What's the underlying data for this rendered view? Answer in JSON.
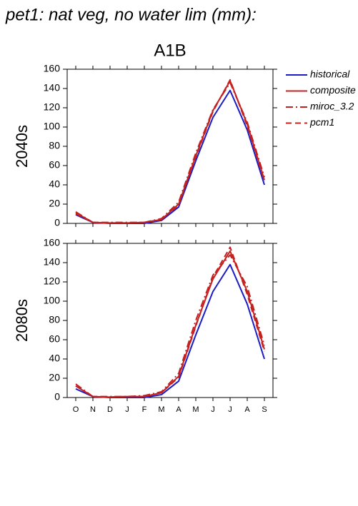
{
  "title": "pet1: nat veg, no water lim (mm):",
  "chart_data": {
    "type": "line",
    "subtitle": "A1B",
    "categories": [
      "O",
      "N",
      "D",
      "J",
      "F",
      "M",
      "A",
      "M",
      "J",
      "J",
      "A",
      "S"
    ],
    "ylim": [
      0,
      160
    ],
    "yticks": [
      0,
      20,
      40,
      60,
      80,
      100,
      120,
      140,
      160
    ],
    "grid": false,
    "legend": "outside-right",
    "series": [
      {
        "name": "historical",
        "color": "#1c1cc4",
        "dash": "solid"
      },
      {
        "name": "composite",
        "color": "#c42020",
        "dash": "solid"
      },
      {
        "name": "miroc_3.2",
        "color": "#c42020",
        "dash": "dash-dot"
      },
      {
        "name": "pcm1",
        "color": "#c42020",
        "dash": "dashed"
      }
    ],
    "panels": [
      {
        "ylabel": "2040s",
        "series": [
          {
            "values": [
              9,
              1,
              0,
              0,
              0,
              3,
              17,
              65,
              110,
              138,
              97,
              40
            ]
          },
          {
            "values": [
              11,
              1,
              0.5,
              0.5,
              1,
              4,
              20,
              70,
              117,
              148,
              103,
              45
            ]
          },
          {
            "values": [
              12,
              1,
              1,
              1,
              1,
              5,
              22,
              73,
              118,
              146,
              105,
              48
            ]
          },
          {
            "values": [
              10,
              1,
              0.5,
              0.5,
              1,
              4,
              19,
              69,
              116,
              149,
              101,
              44
            ]
          }
        ]
      },
      {
        "ylabel": "2080s",
        "series": [
          {
            "values": [
              9,
              1,
              0,
              0,
              0,
              3,
              17,
              65,
              110,
              138,
              97,
              40
            ]
          },
          {
            "values": [
              12,
              1,
              0.5,
              1,
              1,
              5,
              22,
              75,
              123,
              152,
              110,
              50
            ]
          },
          {
            "values": [
              14,
              1,
              1,
              1,
              2,
              6,
              25,
              80,
              127,
              148,
              115,
              54
            ]
          },
          {
            "values": [
              12,
              1,
              0.5,
              1,
              1,
              5,
              21,
              74,
              125,
              156,
              107,
              48
            ]
          }
        ]
      }
    ]
  }
}
